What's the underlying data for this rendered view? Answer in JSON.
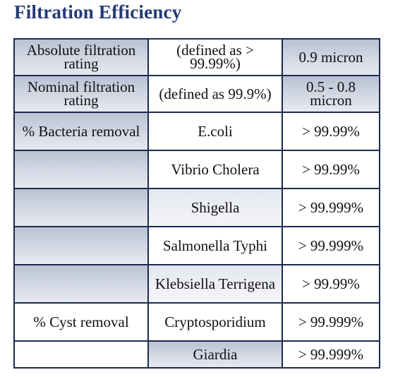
{
  "title": "Filtration Efficiency",
  "rows": [
    {
      "c1": "Absolute filtration rating",
      "c2": "(defined as > 99.99%)",
      "c3": "0.9 micron"
    },
    {
      "c1": "Nominal filtration rating",
      "c2": "(defined as 99.9%)",
      "c3": "0.5 - 0.8 micron"
    },
    {
      "c1": "% Bacteria removal",
      "c2": "E.coli",
      "c3": "> 99.99%"
    },
    {
      "c1": "",
      "c2": "Vibrio Cholera",
      "c3": "> 99.99%"
    },
    {
      "c1": "",
      "c2": "Shigella",
      "c3": "> 99.999%"
    },
    {
      "c1": "",
      "c2": "Salmonella Typhi",
      "c3": "> 99.999%"
    },
    {
      "c1": "",
      "c2": "Klebsiella Terrigena",
      "c3": "> 99.99%"
    },
    {
      "c1": "% Cyst removal",
      "c2": "Cryptosporidium",
      "c3": "> 99.999%"
    },
    {
      "c1": "",
      "c2": "Giardia",
      "c3": "> 99.999%"
    }
  ],
  "colors": {
    "title": "#233a75",
    "border": "#1b2a4e",
    "shaded_cell": "#c9d0dc",
    "white_cell": "#ffffff"
  }
}
